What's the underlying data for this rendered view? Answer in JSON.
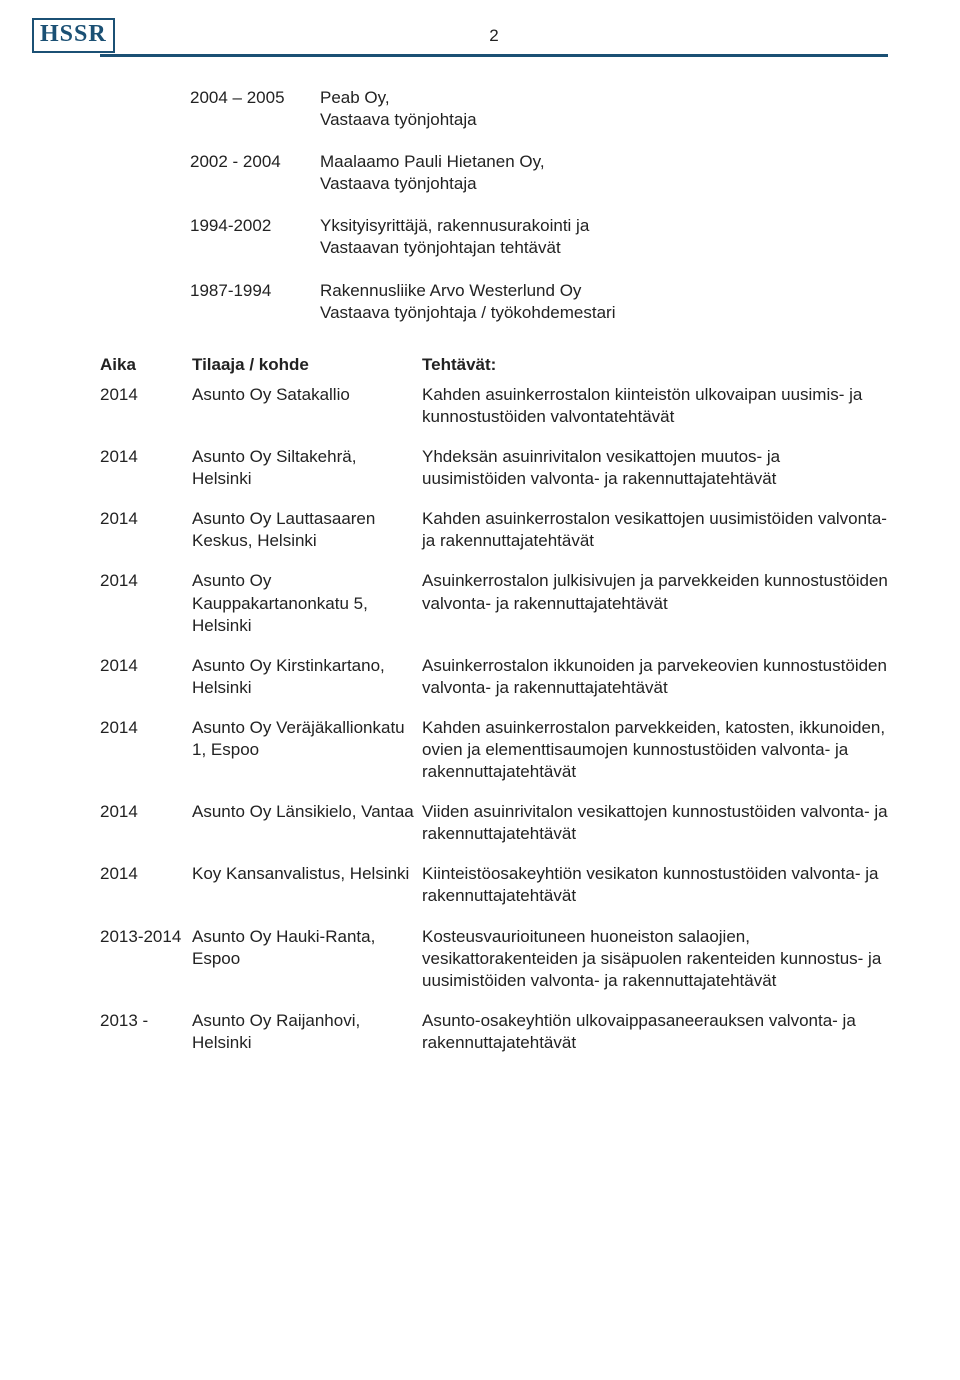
{
  "logo": "HSSR",
  "page_number": "2",
  "colors": {
    "brand": "#1b5074",
    "text": "#222222",
    "background": "#ffffff"
  },
  "typography": {
    "body_font": "Arial",
    "body_size_pt": 12,
    "logo_font": "Georgia",
    "logo_size_pt": 18,
    "line_height": 1.3
  },
  "history": [
    {
      "period": "2004 – 2005",
      "desc": "Peab  Oy,\nVastaava työnjohtaja"
    },
    {
      "period": "2002 - 2004",
      "desc": "Maalaamo Pauli Hietanen Oy,\nVastaava työnjohtaja"
    },
    {
      "period": "1994-2002",
      "desc": "Yksityisyrittäjä, rakennusurakointi ja\nVastaavan työnjohtajan tehtävät"
    },
    {
      "period": "1987-1994",
      "desc": "Rakennusliike Arvo Westerlund Oy\nVastaava työnjohtaja / työkohdemestari"
    }
  ],
  "table": {
    "headers": {
      "aika": "Aika",
      "tilaaja": "Tilaaja / kohde",
      "tehtavat": "Tehtävät:"
    },
    "rows": [
      {
        "aika": "2014",
        "tilaaja": "Asunto Oy Satakallio",
        "tehtavat": "Kahden asuinkerrostalon kiinteistön ulkovaipan uusimis- ja kunnostustöiden valvontatehtävät",
        "spacer_after": true
      },
      {
        "aika": "2014",
        "tilaaja": "Asunto Oy Siltakehrä, Helsinki",
        "tehtavat": "Yhdeksän asuinrivitalon vesikattojen muutos- ja uusimistöiden valvonta- ja rakennuttajatehtävät",
        "spacer_after": true
      },
      {
        "aika": "2014",
        "tilaaja": "Asunto Oy Lauttasaaren Keskus, Helsinki",
        "tehtavat": "Kahden asuinkerrostalon vesikattojen uusimistöiden valvonta- ja rakennuttajatehtävät",
        "spacer_after": true
      },
      {
        "aika": "2014",
        "tilaaja": "Asunto Oy Kauppakartanonkatu 5, Helsinki",
        "tehtavat": "Asuinkerrostalon julkisivujen ja parvekkeiden kunnostustöiden valvonta- ja rakennuttajatehtävät",
        "spacer_after": true
      },
      {
        "aika": "2014",
        "tilaaja": "Asunto Oy Kirstinkartano, Helsinki",
        "tehtavat": "Asuinkerrostalon ikkunoiden ja parvekeovien kunnostustöiden valvonta- ja rakennuttajatehtävät",
        "spacer_after": true
      },
      {
        "aika": "2014",
        "tilaaja": "Asunto Oy Veräjäkallionkatu 1, Espoo",
        "tehtavat": "Kahden asuinkerrostalon parvekkeiden, katosten, ikkunoiden, ovien ja elementtisaumojen kunnostustöiden valvonta- ja rakennuttajatehtävät",
        "spacer_after": true
      },
      {
        "aika": "2014",
        "tilaaja": "Asunto Oy Länsikielo, Vantaa",
        "tehtavat": "Viiden asuinrivitalon vesikattojen kunnostustöiden valvonta- ja rakennuttajatehtävät",
        "spacer_after": true
      },
      {
        "aika": "2014",
        "tilaaja": "Koy Kansanvalistus, Helsinki",
        "tehtavat": "Kiinteistöosakeyhtiön vesikaton kunnostustöiden valvonta- ja rakennuttajatehtävät",
        "spacer_after": true
      },
      {
        "aika": "2013-2014",
        "tilaaja": "Asunto Oy Hauki-Ranta, Espoo",
        "tehtavat": "Kosteusvaurioituneen huoneiston salaojien, vesikattorakenteiden ja sisäpuolen rakenteiden kunnostus- ja uusimistöiden valvonta- ja rakennuttajatehtävät",
        "spacer_after": true
      },
      {
        "aika": "2013 -",
        "tilaaja": "Asunto Oy Raijanhovi, Helsinki",
        "tehtavat": "Asunto-osakeyhtiön ulkovaippasaneerauksen valvonta- ja rakennuttajatehtävät",
        "spacer_after": true
      }
    ]
  }
}
